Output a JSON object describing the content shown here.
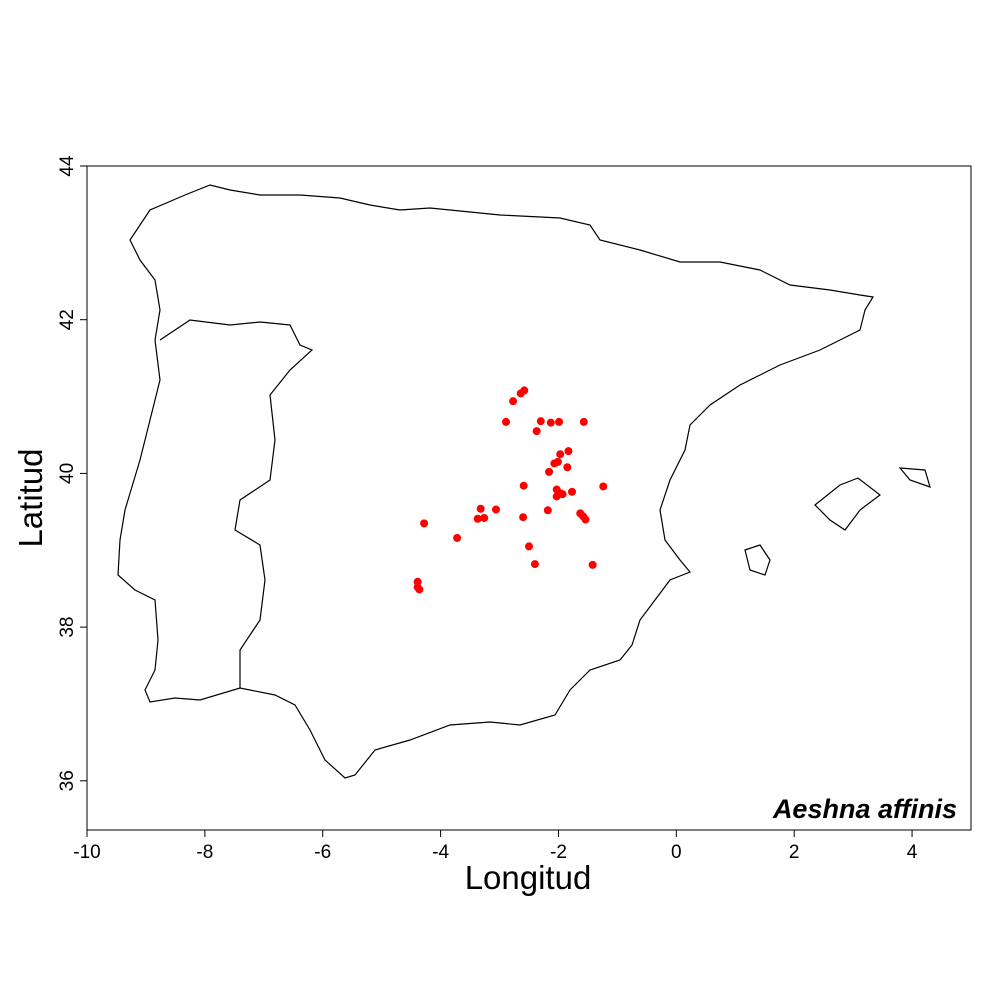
{
  "chart_data": {
    "type": "scatter",
    "title": "Aeshna affinis",
    "xlabel": "Longitud",
    "ylabel": "Latitud",
    "xlim": [
      -10,
      5
    ],
    "ylim": [
      35.36,
      44
    ],
    "xticks": [
      -10,
      -8,
      -6,
      -4,
      -2,
      0,
      2,
      4
    ],
    "yticks": [
      36,
      38,
      40,
      42,
      44
    ],
    "grid": false,
    "point_color": "#ff0000",
    "points": [
      [
        -2.58,
        41.08
      ],
      [
        -2.64,
        41.04
      ],
      [
        -2.77,
        40.94
      ],
      [
        -2.89,
        40.67
      ],
      [
        -2.3,
        40.68
      ],
      [
        -2.13,
        40.66
      ],
      [
        -1.99,
        40.67
      ],
      [
        -1.57,
        40.67
      ],
      [
        -2.37,
        40.55
      ],
      [
        -1.83,
        40.29
      ],
      [
        -1.97,
        40.25
      ],
      [
        -2.01,
        40.15
      ],
      [
        -2.07,
        40.13
      ],
      [
        -1.85,
        40.08
      ],
      [
        -2.16,
        40.02
      ],
      [
        -2.59,
        39.84
      ],
      [
        -1.24,
        39.83
      ],
      [
        -2.03,
        39.79
      ],
      [
        -1.97,
        39.74
      ],
      [
        -2.03,
        39.7
      ],
      [
        -1.93,
        39.73
      ],
      [
        -1.77,
        39.76
      ],
      [
        -3.32,
        39.54
      ],
      [
        -3.06,
        39.53
      ],
      [
        -3.37,
        39.41
      ],
      [
        -3.26,
        39.42
      ],
      [
        -2.6,
        39.43
      ],
      [
        -2.18,
        39.52
      ],
      [
        -1.63,
        39.48
      ],
      [
        -1.58,
        39.44
      ],
      [
        -1.54,
        39.4
      ],
      [
        -4.28,
        39.35
      ],
      [
        -3.72,
        39.16
      ],
      [
        -2.5,
        39.05
      ],
      [
        -2.4,
        38.82
      ],
      [
        -1.42,
        38.81
      ],
      [
        -4.39,
        38.59
      ],
      [
        -4.39,
        38.52
      ],
      [
        -4.36,
        38.49
      ]
    ]
  }
}
